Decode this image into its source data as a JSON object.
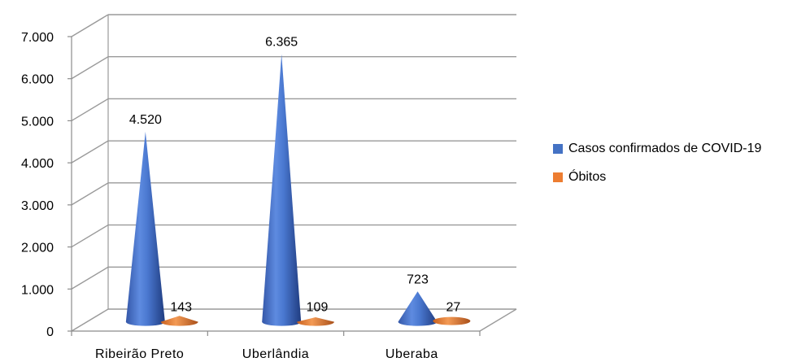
{
  "chart_data": {
    "type": "bar",
    "style": "3d-cone",
    "categories": [
      "Ribeirão Preto",
      "Uberlândia",
      "Uberaba"
    ],
    "series": [
      {
        "name": "Casos confirmados de COVID-19",
        "values": [
          4520,
          6365,
          723
        ],
        "labels": [
          "4.520",
          "6.365",
          "723"
        ],
        "color": "#4472C4"
      },
      {
        "name": "Óbitos",
        "values": [
          143,
          109,
          27
        ],
        "labels": [
          "143",
          "109",
          "27"
        ],
        "color": "#ED7D31"
      }
    ],
    "ylim": [
      0,
      7000
    ],
    "yticks": [
      {
        "value": 0,
        "label": "0"
      },
      {
        "value": 1000,
        "label": "1.000"
      },
      {
        "value": 2000,
        "label": "2.000"
      },
      {
        "value": 3000,
        "label": "3.000"
      },
      {
        "value": 4000,
        "label": "4.000"
      },
      {
        "value": 5000,
        "label": "5.000"
      },
      {
        "value": 6000,
        "label": "6.000"
      },
      {
        "value": 7000,
        "label": "7.000"
      }
    ],
    "grid": true,
    "legend": "right",
    "title": "",
    "xlabel": "",
    "ylabel": ""
  }
}
